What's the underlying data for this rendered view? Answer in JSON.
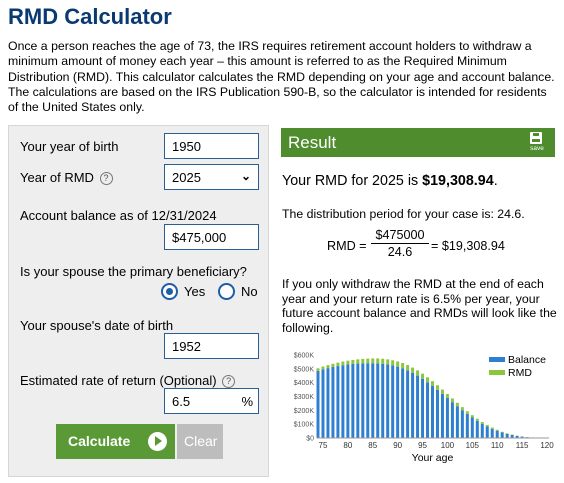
{
  "page": {
    "title": "RMD Calculator",
    "intro": "Once a person reaches the age of 73, the IRS requires retirement account holders to withdraw a minimum amount of money each year – this amount is referred to as the Required Minimum Distribution (RMD). This calculator calculates the RMD depending on your age and account balance. The calculations are based on the IRS Publication 590-B, so the calculator is intended for residents of the United States only."
  },
  "form": {
    "birth_year_label": "Your year of birth",
    "birth_year_value": "1950",
    "rmd_year_label": "Year of RMD",
    "rmd_year_value": "2025",
    "help_icon": "?",
    "balance_label": "Account balance as of 12/31/2024",
    "balance_value": "$475,000",
    "spouse_label": "Is your spouse the primary beneficiary?",
    "yes_label": "Yes",
    "no_label": "No",
    "spouse_selected": "yes",
    "spouse_dob_label": "Your spouse's date of birth",
    "spouse_dob_value": "1952",
    "rate_label": "Estimated rate of return (Optional)",
    "rate_value": "6.5",
    "rate_unit": "%",
    "calculate_label": "Calculate",
    "clear_label": "Clear"
  },
  "result": {
    "header": "Result",
    "save_label": "save",
    "rmd_prefix": "Your RMD for 2025 is ",
    "rmd_amount": "$19,308.94",
    "rmd_suffix": ".",
    "period_text": "The distribution period for your case is: 24.6.",
    "formula_lhs": "RMD =",
    "formula_num": "$475000",
    "formula_den": "24.6",
    "formula_rhs": "= $19,308.94",
    "projection_text": "If you only withdraw the RMD at the end of each year and your return rate is 6.5% per year, your future account balance and RMDs will look like the following."
  },
  "colors": {
    "title": "#0b3a73",
    "panel_bg": "#eeeeee",
    "result_green": "#4f8c2e",
    "calc_green": "#5a9a36",
    "clear_gray": "#bdbdbd",
    "balance_bar": "#2f7fd0",
    "rmd_bar": "#8cc63f"
  },
  "chart_data": {
    "type": "bar",
    "stacked": true,
    "xlabel": "Your age",
    "ylabel": "",
    "x_tick_labels": [
      "75",
      "80",
      "85",
      "90",
      "95",
      "100",
      "105",
      "110",
      "115",
      "120"
    ],
    "y_tick_labels": [
      "$0",
      "$100K",
      "$200K",
      "$300K",
      "$400K",
      "$500K",
      "$600K"
    ],
    "xlim": [
      74,
      120
    ],
    "ylim": [
      0,
      600000
    ],
    "grid": false,
    "legend_position": "top-right",
    "x": [
      74,
      75,
      76,
      77,
      78,
      79,
      80,
      81,
      82,
      83,
      84,
      85,
      86,
      87,
      88,
      89,
      90,
      91,
      92,
      93,
      94,
      95,
      96,
      97,
      98,
      99,
      100,
      101,
      102,
      103,
      104,
      105,
      106,
      107,
      108,
      109,
      110,
      111,
      112,
      113,
      114,
      115,
      116,
      117,
      118,
      119,
      120
    ],
    "series": [
      {
        "name": "Balance",
        "values": [
          485000,
          496000,
          505000,
          513000,
          520000,
          526000,
          531000,
          535000,
          538000,
          540000,
          541000,
          541000,
          540000,
          537000,
          532000,
          525000,
          516000,
          504000,
          489000,
          471000,
          451000,
          428000,
          403000,
          376000,
          348000,
          319000,
          289000,
          259000,
          230000,
          201000,
          174000,
          148000,
          125000,
          103000,
          84000,
          67000,
          53000,
          40000,
          30000,
          22000,
          15000,
          10000,
          6000,
          3500,
          2000,
          800,
          300
        ]
      },
      {
        "name": "RMD",
        "values": [
          19000,
          21000,
          22000,
          23500,
          25000,
          26500,
          28000,
          29000,
          30500,
          32000,
          33000,
          34000,
          35000,
          36000,
          36500,
          37000,
          37500,
          38000,
          38000,
          38000,
          37500,
          37000,
          36000,
          34500,
          33000,
          31000,
          29000,
          27000,
          24500,
          22000,
          19500,
          17000,
          14500,
          12500,
          10500,
          8500,
          6500,
          5000,
          4000,
          3000,
          2000,
          1400,
          900,
          600,
          350,
          200,
          100
        ]
      }
    ]
  }
}
